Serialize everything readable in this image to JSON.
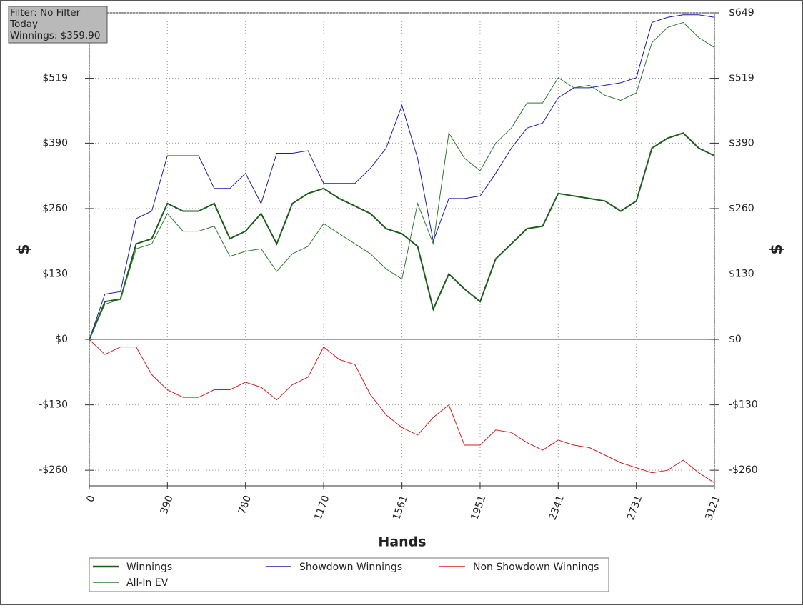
{
  "chart_data": {
    "type": "line",
    "info_box": [
      "Filter: No Filter",
      "Today",
      "Winnings: $359.90"
    ],
    "xlabel": "Hands",
    "ylabel": "$",
    "y2label": "$",
    "x": [
      0,
      78,
      156,
      234,
      312,
      390,
      468,
      546,
      624,
      702,
      780,
      858,
      936,
      1014,
      1092,
      1170,
      1248,
      1326,
      1404,
      1482,
      1561,
      1639,
      1717,
      1795,
      1873,
      1951,
      2029,
      2107,
      2185,
      2263,
      2341,
      2419,
      2497,
      2575,
      2653,
      2731,
      2809,
      2887,
      2965,
      3043,
      3121
    ],
    "series": [
      {
        "name": "Winnings",
        "color": "#1d5c1d",
        "width": 2,
        "values": [
          0,
          75,
          80,
          190,
          200,
          270,
          255,
          255,
          270,
          200,
          215,
          250,
          190,
          270,
          290,
          300,
          280,
          265,
          250,
          220,
          210,
          185,
          60,
          130,
          100,
          75,
          160,
          190,
          220,
          225,
          290,
          285,
          280,
          275,
          255,
          275,
          380,
          400,
          410,
          380,
          365
        ]
      },
      {
        "name": "Showdown Winnings",
        "color": "#1c1ca8",
        "width": 1,
        "values": [
          0,
          90,
          95,
          240,
          255,
          365,
          365,
          365,
          300,
          300,
          330,
          270,
          370,
          370,
          375,
          310,
          310,
          310,
          340,
          380,
          465,
          360,
          195,
          280,
          280,
          285,
          330,
          380,
          420,
          430,
          480,
          500,
          500,
          505,
          510,
          520,
          630,
          640,
          645,
          645,
          640
        ]
      },
      {
        "name": "Non Showdown Winnings",
        "color": "#d41c1c",
        "width": 1,
        "values": [
          0,
          -30,
          -15,
          -15,
          -70,
          -100,
          -115,
          -115,
          -100,
          -100,
          -85,
          -95,
          -120,
          -90,
          -75,
          -15,
          -40,
          -50,
          -110,
          -150,
          -175,
          -190,
          -155,
          -130,
          -210,
          -210,
          -180,
          -185,
          -205,
          -220,
          -200,
          -210,
          -215,
          -230,
          -245,
          -255,
          -265,
          -260,
          -240,
          -265,
          -285
        ]
      },
      {
        "name": "All-In EV",
        "color": "#2e7a2e",
        "width": 1,
        "values": [
          0,
          70,
          80,
          180,
          190,
          250,
          215,
          215,
          225,
          165,
          175,
          180,
          135,
          170,
          185,
          230,
          210,
          190,
          170,
          140,
          120,
          270,
          190,
          410,
          360,
          335,
          390,
          420,
          470,
          470,
          520,
          500,
          505,
          485,
          475,
          490,
          590,
          620,
          630,
          600,
          580
        ]
      }
    ],
    "xlim": [
      0,
      3121
    ],
    "xticks": [
      0,
      390,
      780,
      1170,
      1561,
      1951,
      2341,
      2731,
      3121
    ],
    "ylim": [
      -291,
      649
    ],
    "yticks": [
      {
        "value": -260,
        "label": "-$260"
      },
      {
        "value": -130,
        "label": "-$130"
      },
      {
        "value": 0,
        "label": "$0"
      },
      {
        "value": 130,
        "label": "$130"
      },
      {
        "value": 260,
        "label": "$260"
      },
      {
        "value": 390,
        "label": "$390"
      },
      {
        "value": 519,
        "label": "$519"
      },
      {
        "value": 649,
        "label": "$649"
      }
    ],
    "grid": true
  }
}
